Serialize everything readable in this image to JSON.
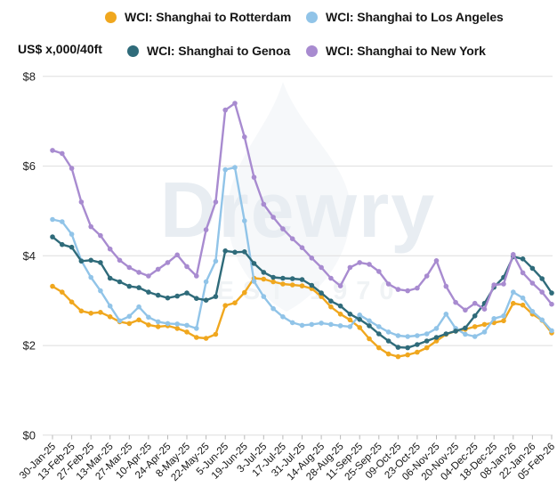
{
  "axis_title": "US$ x,000/40ft",
  "watermark": {
    "title": "Drewry",
    "subtitle": "EST 1970"
  },
  "chart_data": {
    "type": "line",
    "title": "",
    "xlabel": "",
    "ylabel": "US$ x,000/40ft",
    "ylim": [
      0,
      8
    ],
    "y_ticks": [
      "$0",
      "$2",
      "$4",
      "$6",
      "$8"
    ],
    "grid": "horizontal",
    "legend_position": "top",
    "x_label_rotation": -45,
    "points_per_label": 2,
    "n_points": 53,
    "x_tick_labels": [
      "30-Jan-25",
      "13-Feb-25",
      "27-Feb-25",
      "13-Mar-25",
      "27-Mar-25",
      "10-Apr-25",
      "24-Apr-25",
      "8-May-25",
      "22-May-25",
      "5-Jun-25",
      "19-Jun-25",
      "3-Jul-25",
      "17-Jul-25",
      "31-Jul-25",
      "14-Aug-25",
      "28-Aug-25",
      "11-Sep-25",
      "25-Sep-25",
      "09-Oct-25",
      "23-Oct-25",
      "06-Nov-25",
      "20-Nov-25",
      "04-Dec-25",
      "18-Dec-25",
      "08-Jan-26",
      "22-Jan-26",
      "05-Feb-26"
    ],
    "series": [
      {
        "name": "WCI: Shanghai to Rotterdam",
        "color": "#F0A71E",
        "values": [
          3.32,
          3.19,
          2.97,
          2.77,
          2.72,
          2.74,
          2.64,
          2.53,
          2.49,
          2.57,
          2.46,
          2.42,
          2.44,
          2.38,
          2.3,
          2.18,
          2.16,
          2.25,
          2.89,
          2.95,
          3.18,
          3.5,
          3.48,
          3.42,
          3.37,
          3.35,
          3.33,
          3.27,
          3.09,
          2.86,
          2.7,
          2.57,
          2.4,
          2.15,
          1.95,
          1.81,
          1.75,
          1.79,
          1.85,
          1.95,
          2.1,
          2.25,
          2.32,
          2.36,
          2.42,
          2.47,
          2.51,
          2.55,
          2.94,
          2.9,
          2.7,
          2.56,
          2.28
        ]
      },
      {
        "name": "WCI: Shanghai to Los Angeles",
        "color": "#91C4E8",
        "values": [
          4.81,
          4.76,
          4.48,
          3.89,
          3.52,
          3.22,
          2.88,
          2.55,
          2.65,
          2.86,
          2.63,
          2.53,
          2.49,
          2.48,
          2.45,
          2.38,
          3.42,
          3.88,
          5.92,
          5.97,
          4.78,
          3.43,
          3.09,
          2.82,
          2.64,
          2.51,
          2.45,
          2.47,
          2.5,
          2.47,
          2.44,
          2.42,
          2.68,
          2.55,
          2.42,
          2.3,
          2.22,
          2.2,
          2.22,
          2.26,
          2.38,
          2.7,
          2.38,
          2.25,
          2.2,
          2.3,
          2.6,
          2.66,
          3.19,
          3.06,
          2.76,
          2.57,
          2.33
        ]
      },
      {
        "name": "WCI: Shanghai to Genoa",
        "color": "#2F6B7A",
        "values": [
          4.42,
          4.25,
          4.19,
          3.88,
          3.9,
          3.85,
          3.5,
          3.42,
          3.32,
          3.29,
          3.19,
          3.12,
          3.06,
          3.1,
          3.17,
          3.05,
          3.01,
          3.09,
          4.11,
          4.08,
          4.09,
          3.83,
          3.63,
          3.52,
          3.5,
          3.49,
          3.47,
          3.34,
          3.17,
          2.99,
          2.88,
          2.7,
          2.58,
          2.44,
          2.26,
          2.1,
          1.96,
          1.95,
          2.02,
          2.1,
          2.18,
          2.26,
          2.32,
          2.39,
          2.66,
          2.94,
          3.3,
          3.52,
          3.98,
          3.93,
          3.72,
          3.49,
          3.17
        ]
      },
      {
        "name": "WCI: Shanghai to New York",
        "color": "#A88BD0",
        "values": [
          6.35,
          6.28,
          5.95,
          5.2,
          4.65,
          4.45,
          4.15,
          3.9,
          3.74,
          3.63,
          3.55,
          3.7,
          3.85,
          4.02,
          3.76,
          3.55,
          4.58,
          5.2,
          7.25,
          7.4,
          6.65,
          5.75,
          5.15,
          4.86,
          4.6,
          4.38,
          4.18,
          3.95,
          3.74,
          3.5,
          3.33,
          3.74,
          3.85,
          3.81,
          3.65,
          3.37,
          3.25,
          3.22,
          3.28,
          3.55,
          3.89,
          3.32,
          2.96,
          2.79,
          2.94,
          2.81,
          3.35,
          3.37,
          4.03,
          3.62,
          3.39,
          3.19,
          2.92
        ]
      }
    ]
  }
}
